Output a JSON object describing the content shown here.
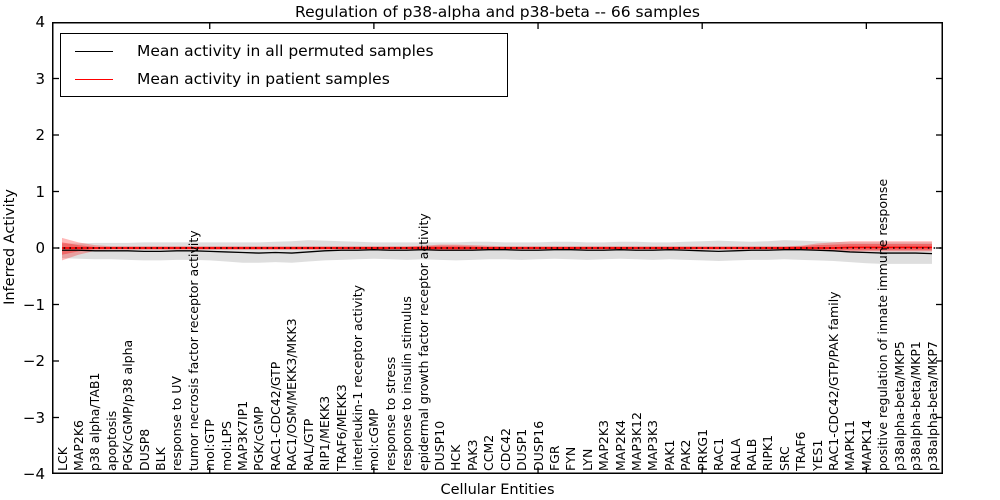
{
  "figure": {
    "title": "Regulation of p38-alpha and p38-beta -- 66 samples",
    "xlabel": "Cellular Entities",
    "ylabel": "Inferred Activity"
  },
  "legend": {
    "entries": [
      {
        "label": "Mean activity in all permuted samples",
        "color": "#000000"
      },
      {
        "label": "Mean activity in patient samples",
        "color": "#ff0000"
      }
    ]
  },
  "chart_data": {
    "type": "line",
    "title": "Regulation of p38-alpha and p38-beta -- 66 samples",
    "xlabel": "Cellular Entities",
    "ylabel": "Inferred Activity",
    "ylim": [
      -4,
      4
    ],
    "yticks": [
      4,
      3,
      2,
      1,
      0,
      -1,
      -2,
      -3,
      -4
    ],
    "grid": false,
    "legend_position": "upper left",
    "zero_reference": 0,
    "xtick_category_indices": [
      9,
      19,
      29,
      39,
      49
    ],
    "categories": [
      "LCK",
      "MAP2K6",
      "p38 alpha/TAB1",
      "apoptosis",
      "PGK/cGMP/p38 alpha",
      "DUSP8",
      "BLK",
      "response to UV",
      "tumor necrosis factor receptor activity",
      "mol:GTP",
      "mol:LPS",
      "MAP3K7IP1",
      "PGK/cGMP",
      "RAC1-CDC42/GTP",
      "RAC1/OSM/MEKK3/MKK3",
      "RAL/GTP",
      "RIP1/MEKK3",
      "TRAF6/MEKK3",
      "interleukin-1 receptor activity",
      "mol:cGMP",
      "response to stress",
      "response to insulin stimulus",
      "epidermal growth factor receptor activity",
      "DUSP10",
      "HCK",
      "PAK3",
      "CCM2",
      "CDC42",
      "DUSP1",
      "DUSP16",
      "FGR",
      "FYN",
      "LYN",
      "MAP2K3",
      "MAP2K4",
      "MAP3K12",
      "MAP3K3",
      "PAK1",
      "PAK2",
      "PRKG1",
      "RAC1",
      "RALA",
      "RALB",
      "RIPK1",
      "SRC",
      "TRAF6",
      "YES1",
      "RAC1-CDC42/GTP/PAK family",
      "MAPK11",
      "MAPK14",
      "positive regulation of innate immune response",
      "p38alpha-beta/MKP5",
      "p38alpha-beta/MKP1",
      "p38alpha-beta/MKP7"
    ],
    "series": [
      {
        "name": "Mean activity in all permuted samples",
        "color": "#000000",
        "style": "solid",
        "values": [
          -0.04,
          -0.04,
          -0.05,
          -0.05,
          -0.05,
          -0.06,
          -0.06,
          -0.05,
          -0.05,
          -0.06,
          -0.07,
          -0.08,
          -0.09,
          -0.08,
          -0.09,
          -0.07,
          -0.05,
          -0.04,
          -0.04,
          -0.03,
          -0.04,
          -0.04,
          -0.03,
          -0.04,
          -0.04,
          -0.04,
          -0.03,
          -0.03,
          -0.04,
          -0.04,
          -0.03,
          -0.03,
          -0.04,
          -0.04,
          -0.03,
          -0.04,
          -0.04,
          -0.03,
          -0.04,
          -0.05,
          -0.06,
          -0.05,
          -0.04,
          -0.04,
          -0.03,
          -0.03,
          -0.04,
          -0.05,
          -0.07,
          -0.08,
          -0.09,
          -0.09,
          -0.09,
          -0.1
        ]
      },
      {
        "name": "Mean activity in patient samples",
        "color": "#ff0000",
        "style": "solid",
        "values": [
          0,
          0,
          0,
          0,
          0,
          0,
          0,
          0,
          0,
          0,
          0,
          0,
          0,
          0,
          0,
          0,
          0,
          0,
          0,
          0,
          0,
          0,
          0,
          0,
          0,
          0,
          0,
          0,
          0,
          0,
          0,
          0,
          0,
          0,
          0,
          0,
          0,
          0,
          0,
          0,
          0,
          0,
          0,
          0,
          0,
          0,
          0,
          0,
          0.01,
          0.01,
          0.01,
          0.01,
          0.01,
          0.01
        ]
      }
    ],
    "bands": [
      {
        "name": "permuted-samples-range",
        "color": "rgba(0,0,0,0.13)",
        "upper": [
          0.08,
          0.08,
          0.09,
          0.09,
          0.09,
          0.1,
          0.1,
          0.1,
          0.1,
          0.1,
          0.1,
          0.1,
          0.1,
          0.11,
          0.12,
          0.14,
          0.13,
          0.12,
          0.11,
          0.1,
          0.1,
          0.1,
          0.1,
          0.1,
          0.1,
          0.11,
          0.11,
          0.1,
          0.1,
          0.1,
          0.11,
          0.11,
          0.1,
          0.1,
          0.11,
          0.11,
          0.1,
          0.1,
          0.11,
          0.12,
          0.13,
          0.12,
          0.11,
          0.12,
          0.14,
          0.13,
          0.12,
          0.11,
          0.1,
          0.1,
          0.1,
          0.1,
          0.1,
          0.1
        ],
        "lower": [
          -0.18,
          -0.19,
          -0.2,
          -0.2,
          -0.21,
          -0.22,
          -0.22,
          -0.21,
          -0.21,
          -0.22,
          -0.24,
          -0.26,
          -0.26,
          -0.25,
          -0.26,
          -0.24,
          -0.22,
          -0.21,
          -0.2,
          -0.19,
          -0.2,
          -0.21,
          -0.2,
          -0.21,
          -0.22,
          -0.21,
          -0.2,
          -0.2,
          -0.21,
          -0.2,
          -0.19,
          -0.2,
          -0.21,
          -0.2,
          -0.19,
          -0.2,
          -0.21,
          -0.2,
          -0.21,
          -0.22,
          -0.23,
          -0.22,
          -0.21,
          -0.21,
          -0.2,
          -0.21,
          -0.22,
          -0.23,
          -0.25,
          -0.27,
          -0.28,
          -0.28,
          -0.28,
          -0.28
        ]
      },
      {
        "name": "patient-samples-range-outer",
        "color": "rgba(255,0,0,0.28)",
        "upper": [
          0.18,
          0.1,
          0.05,
          0.03,
          0.03,
          0.03,
          0.03,
          0.03,
          0.03,
          0.03,
          0.03,
          0.03,
          0.03,
          0.03,
          0.03,
          0.03,
          0.03,
          0.03,
          0.03,
          0.03,
          0.03,
          0.03,
          0.04,
          0.06,
          0.06,
          0.05,
          0.04,
          0.03,
          0.03,
          0.03,
          0.03,
          0.03,
          0.03,
          0.03,
          0.03,
          0.03,
          0.03,
          0.03,
          0.03,
          0.03,
          0.03,
          0.03,
          0.03,
          0.03,
          0.03,
          0.04,
          0.08,
          0.1,
          0.12,
          0.12,
          0.12,
          0.12,
          0.12,
          0.12
        ],
        "lower": [
          -0.22,
          -0.12,
          -0.05,
          -0.03,
          -0.03,
          -0.03,
          -0.03,
          -0.03,
          -0.03,
          -0.03,
          -0.03,
          -0.03,
          -0.03,
          -0.03,
          -0.03,
          -0.03,
          -0.03,
          -0.03,
          -0.03,
          -0.03,
          -0.03,
          -0.03,
          -0.04,
          -0.05,
          -0.05,
          -0.04,
          -0.03,
          -0.03,
          -0.03,
          -0.03,
          -0.03,
          -0.03,
          -0.03,
          -0.03,
          -0.03,
          -0.03,
          -0.03,
          -0.03,
          -0.03,
          -0.03,
          -0.03,
          -0.03,
          -0.03,
          -0.03,
          -0.03,
          -0.03,
          -0.04,
          -0.05,
          -0.06,
          -0.06,
          -0.06,
          -0.06,
          -0.06,
          -0.06
        ]
      },
      {
        "name": "patient-samples-range-inner",
        "color": "rgba(255,0,0,0.35)",
        "upper": [
          0.1,
          0.05,
          0.02,
          0.02,
          0.02,
          0.02,
          0.02,
          0.02,
          0.02,
          0.02,
          0.02,
          0.02,
          0.02,
          0.02,
          0.02,
          0.02,
          0.02,
          0.02,
          0.02,
          0.02,
          0.02,
          0.02,
          0.03,
          0.04,
          0.04,
          0.03,
          0.02,
          0.02,
          0.02,
          0.02,
          0.02,
          0.02,
          0.02,
          0.02,
          0.02,
          0.02,
          0.02,
          0.02,
          0.02,
          0.02,
          0.02,
          0.02,
          0.02,
          0.02,
          0.02,
          0.03,
          0.05,
          0.06,
          0.07,
          0.07,
          0.07,
          0.07,
          0.07,
          0.07
        ],
        "lower": [
          -0.12,
          -0.06,
          -0.02,
          -0.02,
          -0.02,
          -0.02,
          -0.02,
          -0.02,
          -0.02,
          -0.02,
          -0.02,
          -0.02,
          -0.02,
          -0.02,
          -0.02,
          -0.02,
          -0.02,
          -0.02,
          -0.02,
          -0.02,
          -0.02,
          -0.02,
          -0.03,
          -0.04,
          -0.04,
          -0.03,
          -0.02,
          -0.02,
          -0.02,
          -0.02,
          -0.02,
          -0.02,
          -0.02,
          -0.02,
          -0.02,
          -0.02,
          -0.02,
          -0.02,
          -0.02,
          -0.02,
          -0.02,
          -0.02,
          -0.02,
          -0.02,
          -0.02,
          -0.02,
          -0.03,
          -0.03,
          -0.04,
          -0.04,
          -0.04,
          -0.04,
          -0.04,
          -0.04
        ]
      }
    ]
  }
}
